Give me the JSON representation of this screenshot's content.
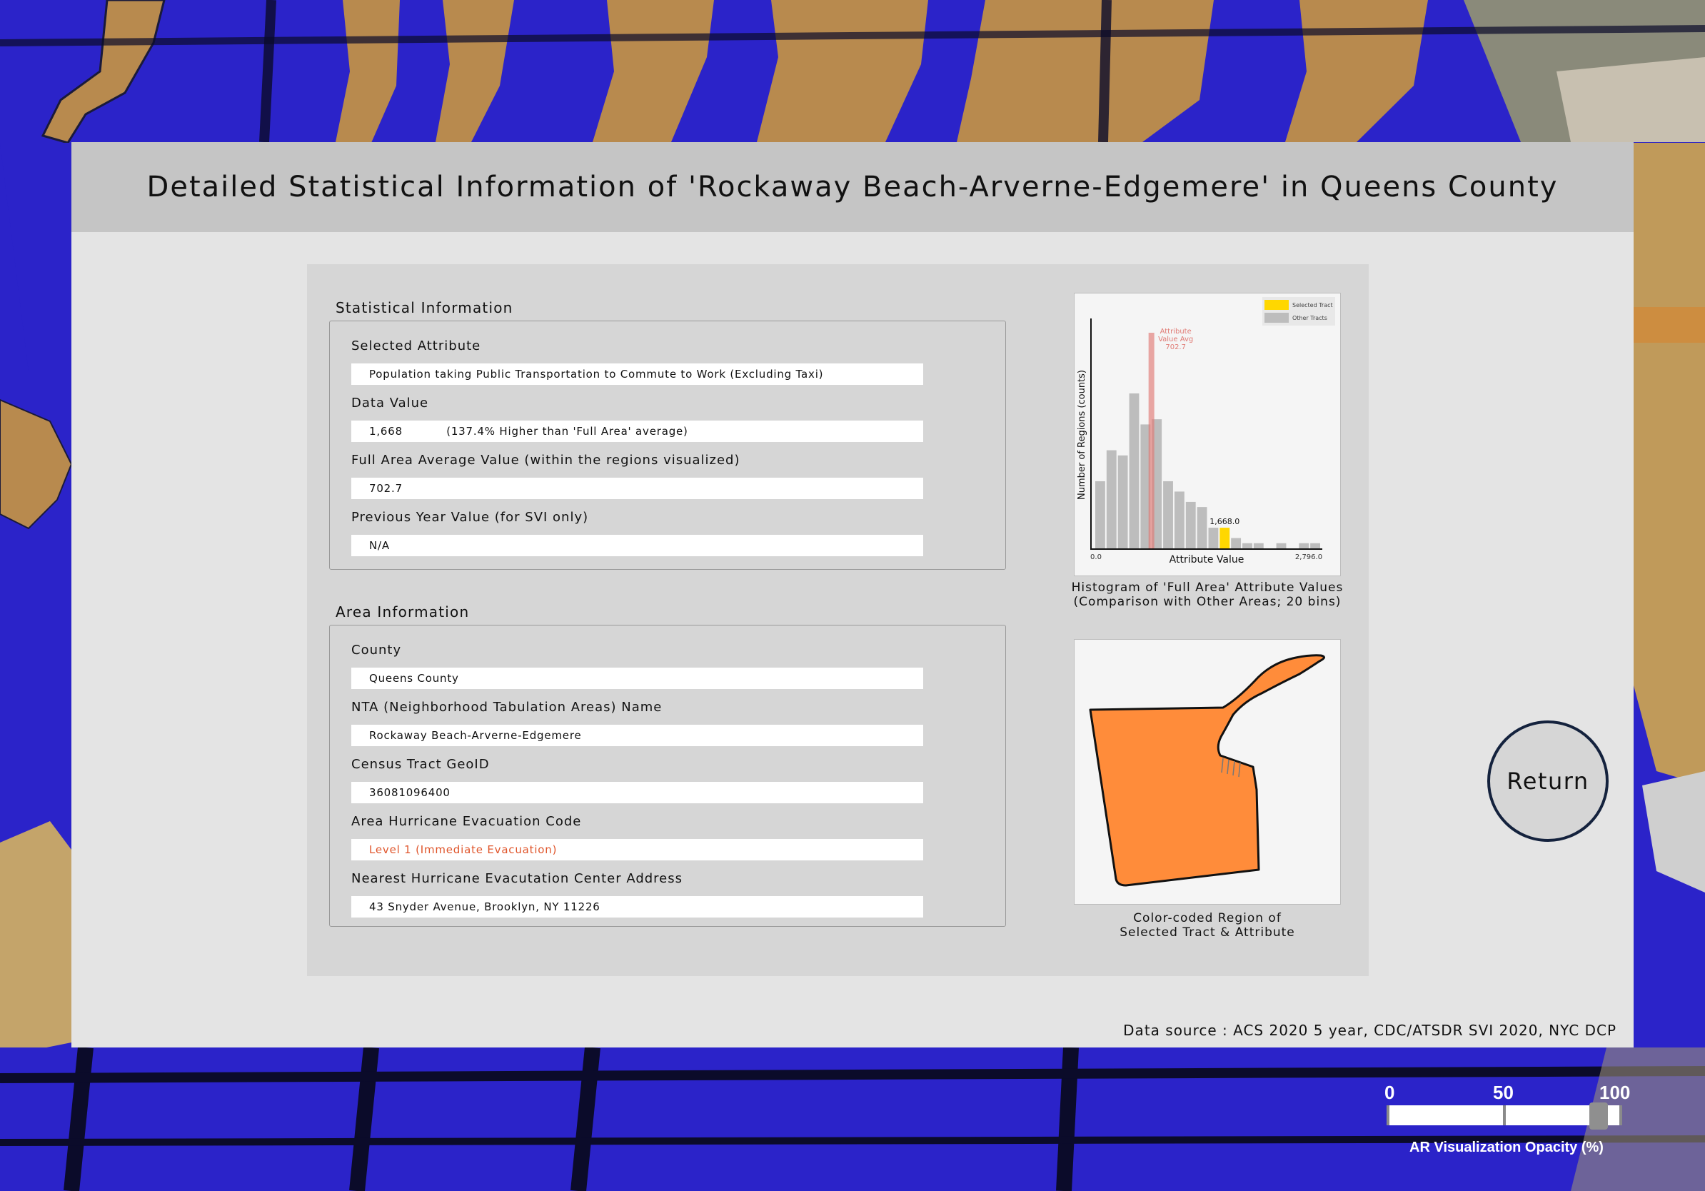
{
  "title": "Detailed Statistical Information of 'Rockaway Beach-Arverne-Edgemere' in Queens County",
  "statistical_info": {
    "heading": "Statistical Information",
    "fields": [
      {
        "label": "Selected Attribute",
        "value": "Population taking Public Transportation to Commute to Work (Excluding Taxi)"
      },
      {
        "label": "Data Value",
        "value": "1,668           (137.4% Higher than 'Full Area' average)"
      },
      {
        "label": "Full Area Average Value (within the regions visualized)",
        "value": "702.7"
      },
      {
        "label": "Previous Year Value (for SVI only)",
        "value": "N/A"
      }
    ]
  },
  "area_info": {
    "heading": "Area Information",
    "fields": [
      {
        "label": "County",
        "value": "Queens County"
      },
      {
        "label": "NTA (Neighborhood Tabulation Areas) Name",
        "value": "Rockaway Beach-Arverne-Edgemere"
      },
      {
        "label": "Census Tract GeoID",
        "value": "36081096400"
      },
      {
        "label": "Area Hurricane Evacuation Code",
        "value": "Level 1 (Immediate Evacuation)",
        "status": "warning"
      },
      {
        "label": "Nearest Hurricane Evacutation Center Address",
        "value": "43 Snyder Avenue, Brooklyn, NY 11226"
      }
    ]
  },
  "histogram": {
    "caption_line1": "Histogram of 'Full Area' Attribute Values",
    "caption_line2": "(Comparison with Other Areas; 20 bins)"
  },
  "chart_data": {
    "type": "bar",
    "xlabel": "Attribute Value",
    "ylabel": "Number of Regions (counts)",
    "x_min_label": "0.0",
    "x_max_label": "2,796.0",
    "xlim": [
      0,
      2796
    ],
    "bins": 20,
    "bin_counts": [
      13,
      19,
      18,
      30,
      24,
      25,
      13,
      11,
      9,
      8,
      4,
      4,
      2,
      1,
      1,
      0,
      1,
      0,
      1,
      1
    ],
    "selected_bin": 11,
    "selected_value": 1668,
    "selected_value_label": "1,668.0",
    "average_value": 702.7,
    "average_label_lines": [
      "Attribute",
      "Value Avg",
      "702.7"
    ],
    "legend": [
      {
        "name": "Selected Tract",
        "color": "#ffd700"
      },
      {
        "name": "Other Tracts",
        "color": "#bdbdbd"
      }
    ],
    "average_line_color": "#e07a74",
    "legend_position": "top-right"
  },
  "region_map": {
    "caption_line1": "Color-coded Region of",
    "caption_line2": "Selected Tract & Attribute",
    "fill_color": "#ff8c3a"
  },
  "return_button": {
    "label": "Return"
  },
  "data_source": "Data source : ACS 2020 5 year, CDC/ATSDR SVI 2020, NYC DCP",
  "opacity_slider": {
    "ticks": [
      "0",
      "50",
      "100"
    ],
    "value_percent": 90,
    "label": "AR Visualization Opacity (%)"
  },
  "colors": {
    "panel_bg": "#e4e4e4",
    "header_bg": "#c5c5c5",
    "card_bg": "#d6d6d6",
    "warning_text": "#e0552b",
    "return_ring": "#14223d",
    "map_water": "#2b23c9",
    "map_land": "#b88a4e"
  }
}
